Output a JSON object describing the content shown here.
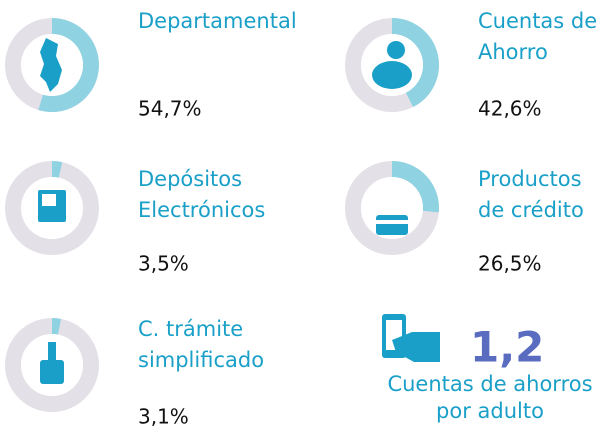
{
  "items": [
    {
      "label_lines": [
        "Departamental"
      ],
      "value": 54.7,
      "value_label": "54,7%"
    },
    {
      "label_lines": [
        "Cuentas de",
        "Ahorro"
      ],
      "value": 42.6,
      "value_label": "42,6%"
    },
    {
      "label_lines": [
        "Depósitos",
        "Electrónicos"
      ],
      "value": 3.5,
      "value_label": "3,5%"
    },
    {
      "label_lines": [
        "Productos",
        "de crédito"
      ],
      "value": 26.5,
      "value_label": "26,5%"
    },
    {
      "label_lines": [
        "C. trámite",
        "simplificado"
      ],
      "value": 3.1,
      "value_label": "3,1%"
    }
  ],
  "summary": {
    "value": "1,2",
    "caption_lines": [
      "Cuentas de ahorros",
      "por adulto"
    ]
  }
}
